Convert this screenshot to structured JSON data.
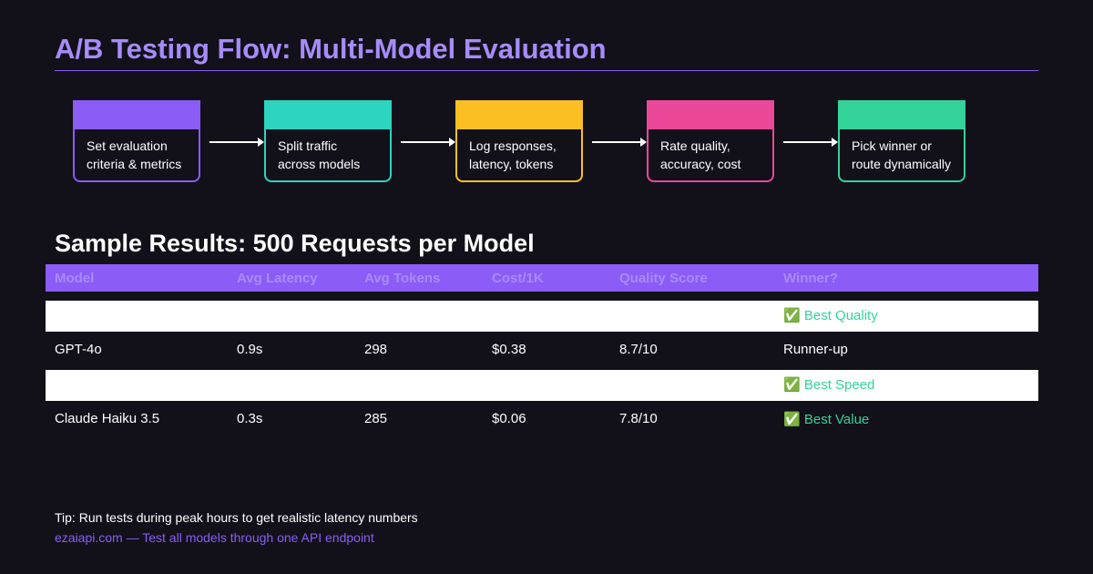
{
  "header": {
    "title": "A/B Testing Flow: Multi-Model Evaluation"
  },
  "flow": {
    "steps": [
      {
        "lines": [
          "Set evaluation",
          "criteria & metrics"
        ]
      },
      {
        "lines": [
          "Split traffic",
          "across models"
        ]
      },
      {
        "lines": [
          "Log responses,",
          "latency, tokens"
        ]
      },
      {
        "lines": [
          "Rate quality,",
          "accuracy, cost"
        ]
      },
      {
        "lines": [
          "Pick winner or",
          "route dynamically"
        ]
      }
    ]
  },
  "table": {
    "title": "Sample Results: 500 Requests per Model",
    "columns": [
      "Model",
      "Avg Latency",
      "Avg Tokens",
      "Cost/1K",
      "Quality Score",
      "Winner?"
    ],
    "rows": [
      {
        "winner": "✅ Best Quality"
      },
      {
        "model": "GPT-4o",
        "latency": "0.9s",
        "tokens": "298",
        "cost": "$0.38",
        "quality": "8.7/10",
        "winner": "Runner-up"
      },
      {
        "winner": "✅ Best Speed"
      },
      {
        "model": "Claude Haiku 3.5",
        "latency": "0.3s",
        "tokens": "285",
        "cost": "$0.06",
        "quality": "7.8/10",
        "winner": "✅ Best Value"
      }
    ]
  },
  "footer": {
    "tip": "Tip: Run tests during peak hours to get realistic latency numbers",
    "link": "ezaiapi.com — Test all models through one API endpoint"
  }
}
